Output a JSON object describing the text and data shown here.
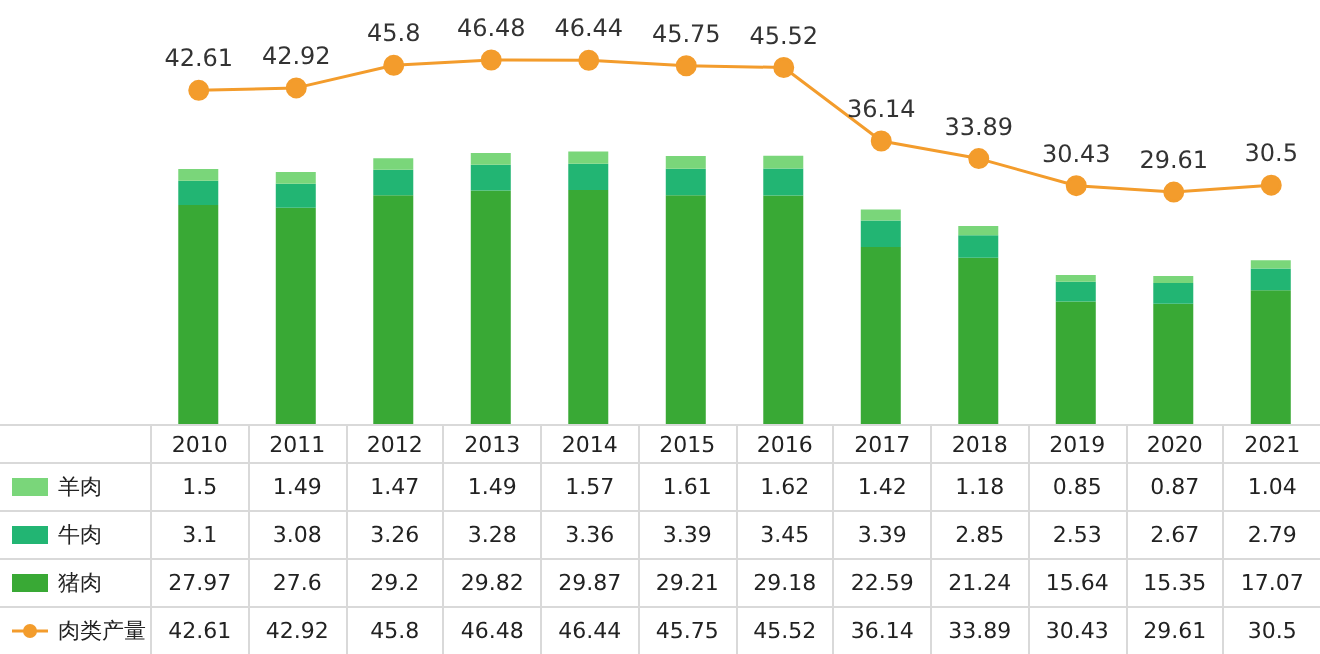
{
  "chart_data": {
    "type": "bar",
    "stacked": true,
    "data_labels": true,
    "legend": "bottom left",
    "grid": false,
    "categories": [
      "2010",
      "2011",
      "2012",
      "2013",
      "2014",
      "2015",
      "2016",
      "2017",
      "2018",
      "2019",
      "2020",
      "2021"
    ],
    "series": [
      {
        "name": "猪肉",
        "color": "#39a935",
        "values": [
          27.97,
          27.6,
          29.2,
          29.82,
          29.87,
          29.21,
          29.18,
          22.59,
          21.24,
          15.64,
          15.35,
          17.07
        ]
      },
      {
        "name": "牛肉",
        "color": "#22b573",
        "values": [
          3.1,
          3.08,
          3.26,
          3.28,
          3.36,
          3.39,
          3.45,
          3.39,
          2.85,
          2.53,
          2.67,
          2.79
        ]
      },
      {
        "name": "羊肉",
        "color": "#7ad67a",
        "values": [
          1.5,
          1.49,
          1.47,
          1.49,
          1.57,
          1.61,
          1.62,
          1.42,
          1.18,
          0.85,
          0.87,
          1.04
        ]
      },
      {
        "name": "肉类产量",
        "type": "line",
        "color": "#f39c2c",
        "marker": "circle",
        "values": [
          42.61,
          42.92,
          45.8,
          46.48,
          46.44,
          45.75,
          45.52,
          36.14,
          33.89,
          30.43,
          29.61,
          30.5
        ]
      }
    ],
    "annotations": [
      {
        "text": "42.61",
        "x": "2010",
        "y": 42.61
      },
      {
        "text": "42.92",
        "x": "2011",
        "y": 42.92
      },
      {
        "text": "45.8",
        "x": "2012",
        "y": 45.8
      },
      {
        "text": "46.48",
        "x": "2013",
        "y": 46.48
      },
      {
        "text": "46.44",
        "x": "2014",
        "y": 46.44
      },
      {
        "text": "45.75",
        "x": "2015",
        "y": 45.75
      },
      {
        "text": "45.52",
        "x": "2016",
        "y": 45.52
      },
      {
        "text": "36.14",
        "x": "2017",
        "y": 36.14
      },
      {
        "text": "33.89",
        "x": "2018",
        "y": 33.89
      },
      {
        "text": "30.43",
        "x": "2019",
        "y": 30.43
      },
      {
        "text": "29.61",
        "x": "2020",
        "y": 29.61
      },
      {
        "text": "30.5",
        "x": "2021",
        "y": 30.5
      }
    ]
  }
}
